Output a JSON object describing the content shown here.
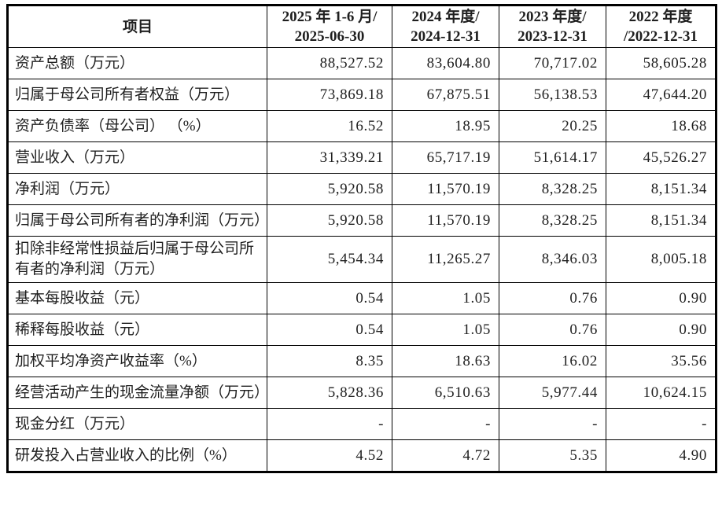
{
  "colors": {
    "background": "#ffffff",
    "border": "#000000",
    "text": "#1f1f1f"
  },
  "table": {
    "columns": [
      {
        "label": "项目"
      },
      {
        "label": "2025 年 1-6 月/\n2025-06-30"
      },
      {
        "label": "2024 年度/\n2024-12-31"
      },
      {
        "label": "2023 年度/\n2023-12-31"
      },
      {
        "label": "2022 年度\n/2022-12-31"
      }
    ],
    "rows": [
      {
        "label": "资产总额（万元）",
        "values": [
          "88,527.52",
          "83,604.80",
          "70,717.02",
          "58,605.28"
        ]
      },
      {
        "label": "归属于母公司所有者权益（万元）",
        "values": [
          "73,869.18",
          "67,875.51",
          "56,138.53",
          "47,644.20"
        ]
      },
      {
        "label": "资产负债率（母公司） （%）",
        "values": [
          "16.52",
          "18.95",
          "20.25",
          "18.68"
        ]
      },
      {
        "label": "营业收入（万元）",
        "values": [
          "31,339.21",
          "65,717.19",
          "51,614.17",
          "45,526.27"
        ]
      },
      {
        "label": "净利润（万元）",
        "values": [
          "5,920.58",
          "11,570.19",
          "8,328.25",
          "8,151.34"
        ]
      },
      {
        "label": "归属于母公司所有者的净利润（万元）",
        "values": [
          "5,920.58",
          "11,570.19",
          "8,328.25",
          "8,151.34"
        ]
      },
      {
        "label": "扣除非经常性损益后归属于母公司所有者的净利润（万元）",
        "values": [
          "5,454.34",
          "11,265.27",
          "8,346.03",
          "8,005.18"
        ]
      },
      {
        "label": "基本每股收益（元）",
        "values": [
          "0.54",
          "1.05",
          "0.76",
          "0.90"
        ]
      },
      {
        "label": "稀释每股收益（元）",
        "values": [
          "0.54",
          "1.05",
          "0.76",
          "0.90"
        ]
      },
      {
        "label": "加权平均净资产收益率（%）",
        "values": [
          "8.35",
          "18.63",
          "16.02",
          "35.56"
        ]
      },
      {
        "label": "经营活动产生的现金流量净额（万元）",
        "values": [
          "5,828.36",
          "6,510.63",
          "5,977.44",
          "10,624.15"
        ]
      },
      {
        "label": "现金分红（万元）",
        "values": [
          "-",
          "-",
          "-",
          "-"
        ]
      },
      {
        "label": "研发投入占营业收入的比例（%）",
        "values": [
          "4.52",
          "4.72",
          "5.35",
          "4.90"
        ]
      }
    ]
  }
}
